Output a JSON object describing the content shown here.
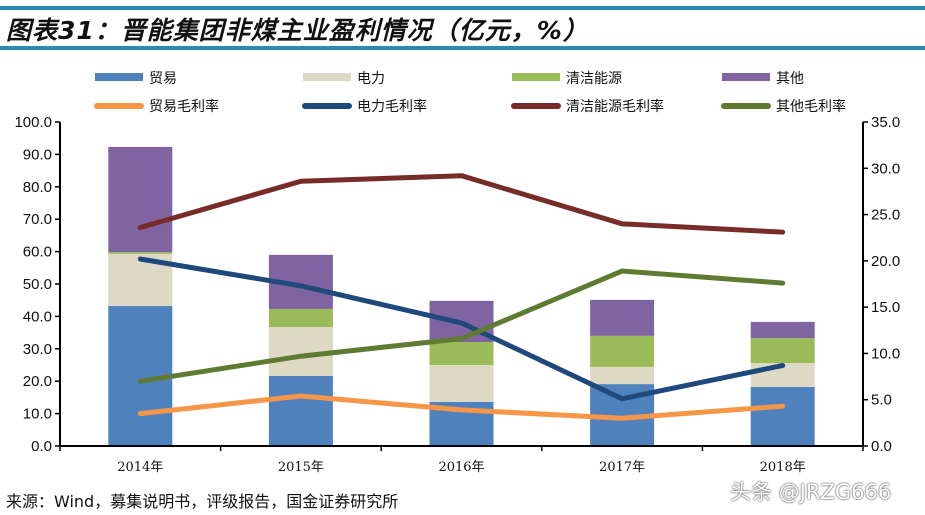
{
  "title": "图表31：晋能集团非煤主业盈利情况（亿元，%）",
  "source": "来源：Wind，募集说明书，评级报告，国金证券研究所",
  "watermark": "头条 @JRZG666",
  "chart_data": {
    "type": "bar+line",
    "title": "图表31：晋能集团非煤主业盈利情况（亿元，%）",
    "categories": [
      "2014年",
      "2015年",
      "2016年",
      "2017年",
      "2018年"
    ],
    "left_axis": {
      "ylim": [
        0,
        100
      ],
      "ticks": [
        "0.0",
        "10.0",
        "20.0",
        "30.0",
        "40.0",
        "50.0",
        "60.0",
        "70.0",
        "80.0",
        "90.0",
        "100.0"
      ]
    },
    "right_axis": {
      "ylim": [
        0,
        35
      ],
      "ticks": [
        "0.0",
        "5.0",
        "10.0",
        "15.0",
        "20.0",
        "25.0",
        "30.0",
        "35.0"
      ]
    },
    "legend_placement": "top",
    "grid": false,
    "bar_series": [
      {
        "name": "贸易",
        "color": "#4f81bd",
        "values": [
          43.2,
          21.6,
          13.6,
          19.1,
          18.2
        ]
      },
      {
        "name": "电力",
        "color": "#ddd9c4",
        "values": [
          16.1,
          15.1,
          11.4,
          5.3,
          7.4
        ]
      },
      {
        "name": "清洁能源",
        "color": "#9bbb59",
        "values": [
          0.5,
          5.6,
          7.1,
          9.6,
          7.7
        ]
      },
      {
        "name": "其他",
        "color": "#8064a2",
        "values": [
          32.5,
          16.7,
          12.7,
          11.1,
          5.0
        ]
      }
    ],
    "line_series": [
      {
        "name": "贸易毛利率",
        "color": "#f79646",
        "values": [
          3.5,
          5.4,
          3.9,
          3.0,
          4.3
        ]
      },
      {
        "name": "电力毛利率",
        "color": "#1f497d",
        "values": [
          20.2,
          17.3,
          13.3,
          5.1,
          8.7
        ]
      },
      {
        "name": "清洁能源毛利率",
        "color": "#772c2a",
        "values": [
          23.6,
          28.6,
          29.2,
          24.0,
          23.1
        ]
      },
      {
        "name": "其他毛利率",
        "color": "#5f7b31",
        "values": [
          7.0,
          9.7,
          11.6,
          18.9,
          17.6
        ]
      }
    ]
  }
}
